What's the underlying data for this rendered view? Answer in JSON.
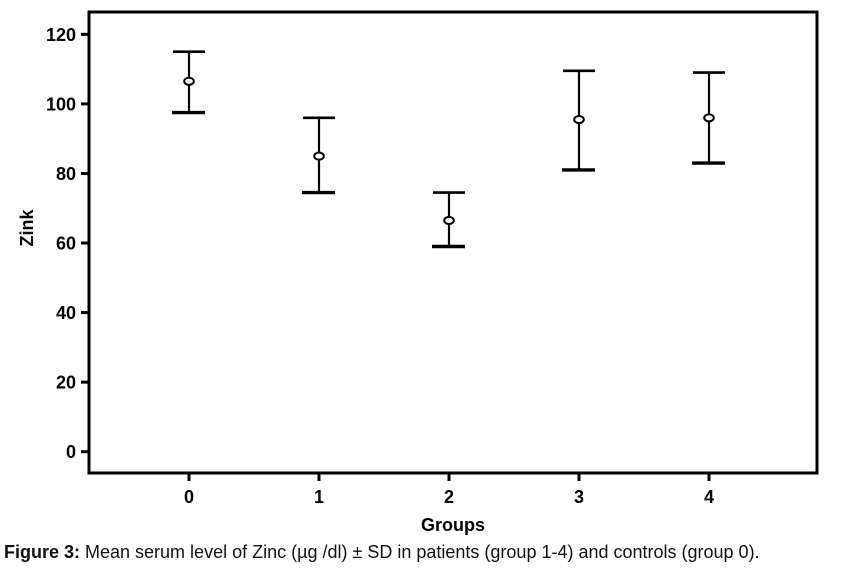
{
  "chart_data": {
    "type": "errorbar",
    "title": "",
    "xlabel": "Groups",
    "ylabel": "Zink",
    "categories": [
      "0",
      "1",
      "2",
      "3",
      "4"
    ],
    "y_ticks": [
      0,
      20,
      40,
      60,
      80,
      100,
      120
    ],
    "ylim": [
      -6,
      126
    ],
    "grid": false,
    "legend": "none",
    "series": [
      {
        "name": "Mean serum Zinc ± SD",
        "means": [
          106.5,
          85,
          66.5,
          95.5,
          96
        ],
        "upper": [
          115,
          96,
          74.5,
          109.5,
          109
        ],
        "lower": [
          97.5,
          74.5,
          59,
          81,
          83
        ]
      }
    ]
  },
  "caption": {
    "label": "Figure 3:",
    "text": " Mean serum level of Zinc (µg /dl) ± SD in patients (group 1-4) and controls (group 0)."
  },
  "colors": {
    "ink": "#000000",
    "background": "#ffffff"
  }
}
